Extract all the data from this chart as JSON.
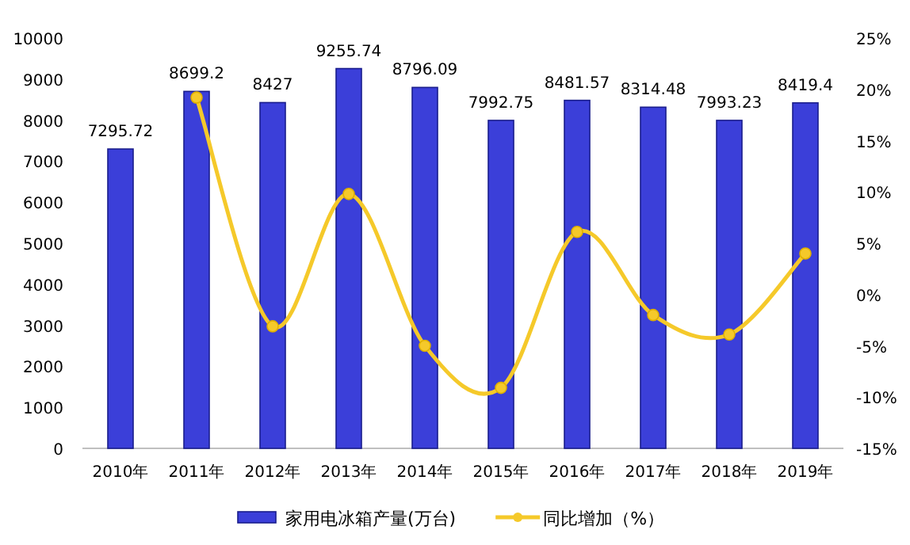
{
  "chart_data": {
    "type": "bar",
    "categories": [
      "2010年",
      "2011年",
      "2012年",
      "2013年",
      "2014年",
      "2015年",
      "2016年",
      "2017年",
      "2018年",
      "2019年"
    ],
    "series": [
      {
        "name": "家用电冰箱产量(万台)",
        "color": "#3b3fd9",
        "values": [
          7295.72,
          8699.2,
          8427,
          9255.74,
          8796.09,
          7992.75,
          8481.57,
          8314.48,
          7993.23,
          8419.4
        ],
        "value_labels": [
          "7295.72",
          "8699.2",
          "8427",
          "9255.74",
          "8796.09",
          "7992.75",
          "8481.57",
          "8314.48",
          "7993.23",
          "8419.4"
        ]
      },
      {
        "name": "同比增加（%）",
        "type": "line",
        "axis": "y2",
        "color": "#f5c92a",
        "marker": "circle",
        "values": [
          null,
          19.2,
          -3.1,
          9.8,
          -5.0,
          -9.1,
          6.1,
          -2.0,
          -3.9,
          4.0
        ]
      }
    ],
    "ylim": [
      0,
      10000
    ],
    "yticks": [
      0,
      1000,
      2000,
      3000,
      4000,
      5000,
      6000,
      7000,
      8000,
      9000,
      10000
    ],
    "y2lim": [
      -15,
      25
    ],
    "y2ticks": [
      {
        "value": -15,
        "label": "-15%"
      },
      {
        "value": -10,
        "label": "-10%"
      },
      {
        "value": -5,
        "label": "-5%"
      },
      {
        "value": 0,
        "label": "0%"
      },
      {
        "value": 5,
        "label": "5%"
      },
      {
        "value": 10,
        "label": "10%"
      },
      {
        "value": 15,
        "label": "15%"
      },
      {
        "value": 20,
        "label": "20%"
      },
      {
        "value": 25,
        "label": "25%"
      }
    ],
    "grid": false,
    "legend": "bottom"
  }
}
